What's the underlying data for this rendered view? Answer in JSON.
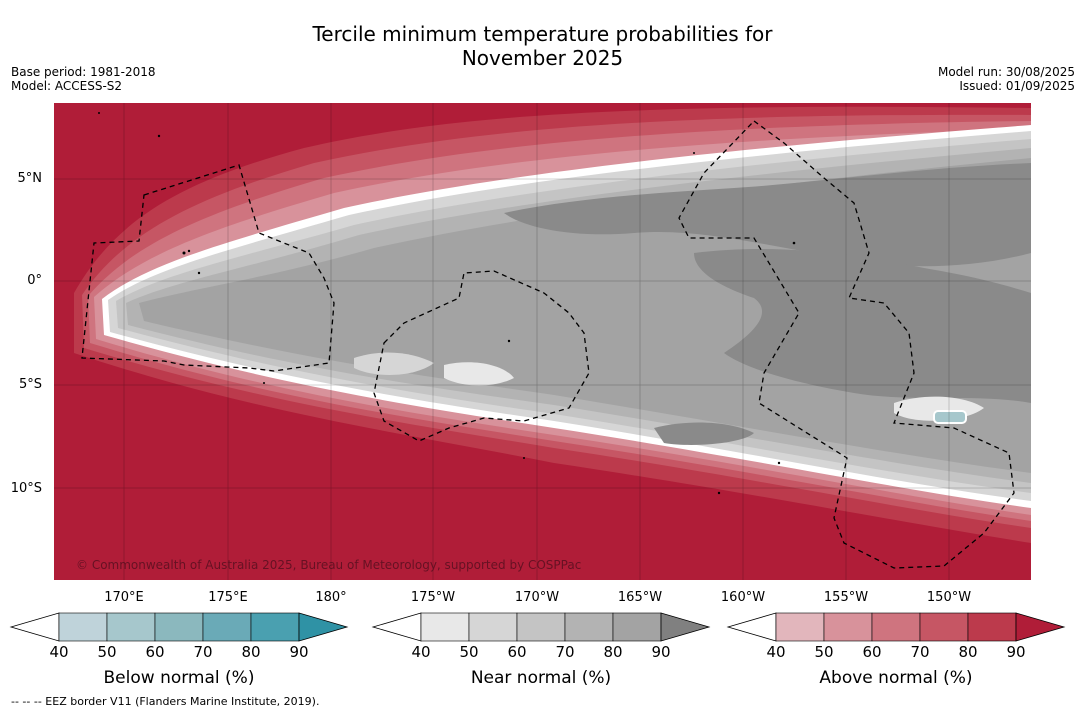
{
  "title_line1": "Tercile minimum temperature probabilities for",
  "title_line2": "November 2025",
  "meta_left": [
    "Base period: 1981-2018",
    "Model: ACCESS-S2"
  ],
  "meta_right": [
    "Model run: 30/08/2025",
    "Issued: 01/09/2025"
  ],
  "lat_labels": [
    "5°N",
    "0°",
    "5°S",
    "10°S"
  ],
  "lon_labels": [
    "170°E",
    "175°E",
    "180°",
    "175°W",
    "170°W",
    "165°W",
    "160°W",
    "155°W",
    "150°W"
  ],
  "copyright": "© Commonwealth of Australia 2025, Bureau of Meteorology, supported by COSPPac",
  "colorbars": [
    {
      "label": "Below normal (%)",
      "ticks": [
        "40",
        "50",
        "60",
        "70",
        "80",
        "90"
      ],
      "colors": [
        "#ffffff",
        "#bfd3da",
        "#a6c7cc",
        "#8bb8be",
        "#6aaab7",
        "#4aa0b0",
        "#2f92a5"
      ]
    },
    {
      "label": "Near normal (%)",
      "ticks": [
        "40",
        "50",
        "60",
        "70",
        "80",
        "90"
      ],
      "colors": [
        "#ffffff",
        "#e8e8e8",
        "#d6d6d6",
        "#c4c4c4",
        "#b3b3b3",
        "#a3a3a3",
        "#808080"
      ]
    },
    {
      "label": "Above normal (%)",
      "ticks": [
        "40",
        "50",
        "60",
        "70",
        "80",
        "90"
      ],
      "colors": [
        "#ffffff",
        "#e2b6bc",
        "#d8929b",
        "#cf747f",
        "#c65664",
        "#bc3a4c",
        "#b01d38"
      ]
    }
  ],
  "footer": "--  --  -- EEZ border V11 (Flanders Marine Institute, 2019)."
}
